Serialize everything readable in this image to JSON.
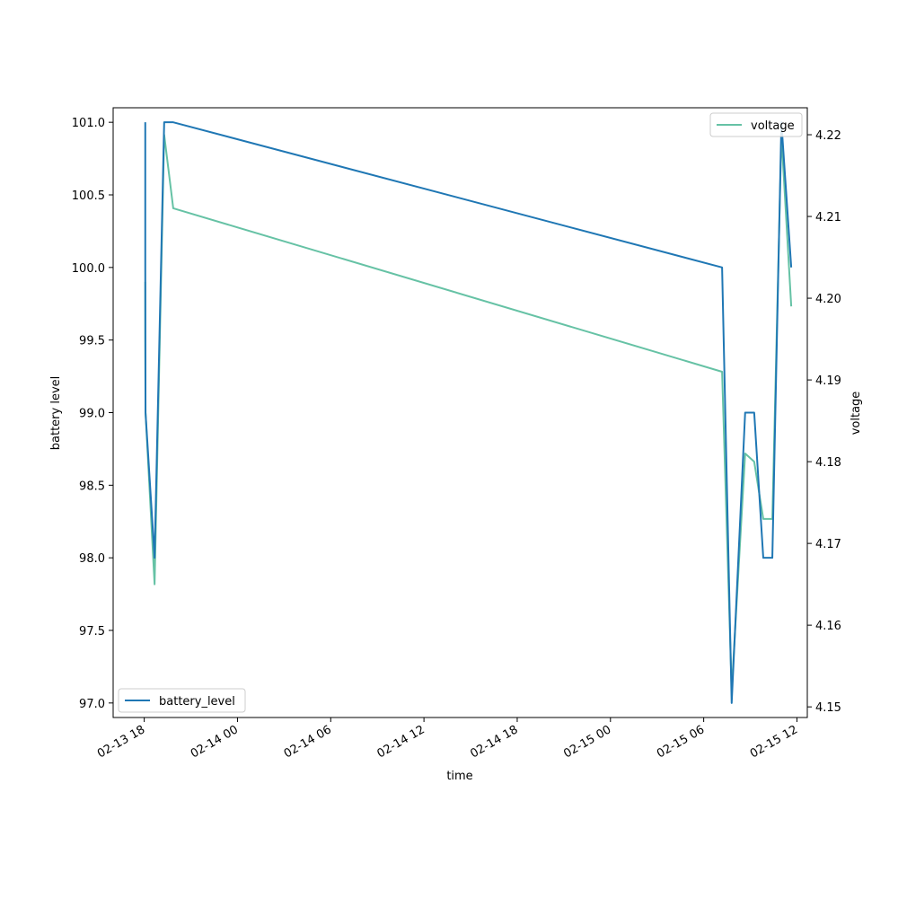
{
  "chart_data": {
    "type": "line",
    "title": "",
    "xlabel": "time",
    "ylabel_left": "battery level",
    "ylabel_right": "voltage",
    "x_ticks": [
      "02-13 18",
      "02-14 00",
      "02-14 06",
      "02-14 12",
      "02-14 18",
      "02-15 00",
      "02-15 06",
      "02-15 12"
    ],
    "x_tick_times": [
      "2024-02-13 18:00",
      "2024-02-14 00:00",
      "2024-02-14 06:00",
      "2024-02-14 12:00",
      "2024-02-14 18:00",
      "2024-02-15 00:00",
      "2024-02-15 06:00",
      "2024-02-15 12:00"
    ],
    "xlim": [
      "2024-02-13 16:00",
      "2024-02-15 12:40"
    ],
    "y_left_ticks": [
      "97.0",
      "97.5",
      "98.0",
      "98.5",
      "99.0",
      "99.5",
      "100.0",
      "100.5",
      "101.0"
    ],
    "y_left_tick_values": [
      97.0,
      97.5,
      98.0,
      98.5,
      99.0,
      99.5,
      100.0,
      100.5,
      101.0
    ],
    "ylim_left": [
      96.9,
      101.1
    ],
    "y_right_ticks": [
      "4.15",
      "4.16",
      "4.17",
      "4.18",
      "4.19",
      "4.20",
      "4.21",
      "4.22"
    ],
    "y_right_tick_values": [
      4.15,
      4.16,
      4.17,
      4.18,
      4.19,
      4.2,
      4.21,
      4.22
    ],
    "ylim_right": [
      4.1487,
      4.2233
    ],
    "grid": false,
    "series": [
      {
        "name": "battery_level",
        "axis": "left",
        "color": "#1f77b4",
        "legend": "lower-left",
        "x": [
          "2024-02-13 18:04",
          "2024-02-13 18:04",
          "2024-02-13 18:05",
          "2024-02-13 18:40",
          "2024-02-13 19:17",
          "2024-02-13 19:52",
          "2024-02-15 07:11",
          "2024-02-15 07:48",
          "2024-02-15 08:40",
          "2024-02-15 09:15",
          "2024-02-15 09:50",
          "2024-02-15 10:25",
          "2024-02-15 11:00",
          "2024-02-15 11:38"
        ],
        "y": [
          101.0,
          100.0,
          99.0,
          98.0,
          101.0,
          101.0,
          100.0,
          97.0,
          99.0,
          99.0,
          98.0,
          98.0,
          101.0,
          100.0
        ]
      },
      {
        "name": "voltage",
        "axis": "right",
        "color": "#66c2a5",
        "legend": "upper-right",
        "x": [
          "2024-02-13 18:04",
          "2024-02-13 18:04",
          "2024-02-13 18:05",
          "2024-02-13 18:40",
          "2024-02-13 19:17",
          "2024-02-13 19:52",
          "2024-02-15 07:11",
          "2024-02-15 07:48",
          "2024-02-15 08:40",
          "2024-02-15 09:15",
          "2024-02-15 09:50",
          "2024-02-15 10:25",
          "2024-02-15 11:00",
          "2024-02-15 11:38"
        ],
        "y": [
          4.202,
          4.195,
          4.186,
          4.165,
          4.22,
          4.211,
          4.191,
          4.152,
          4.181,
          4.18,
          4.173,
          4.173,
          4.22,
          4.199
        ]
      }
    ]
  }
}
